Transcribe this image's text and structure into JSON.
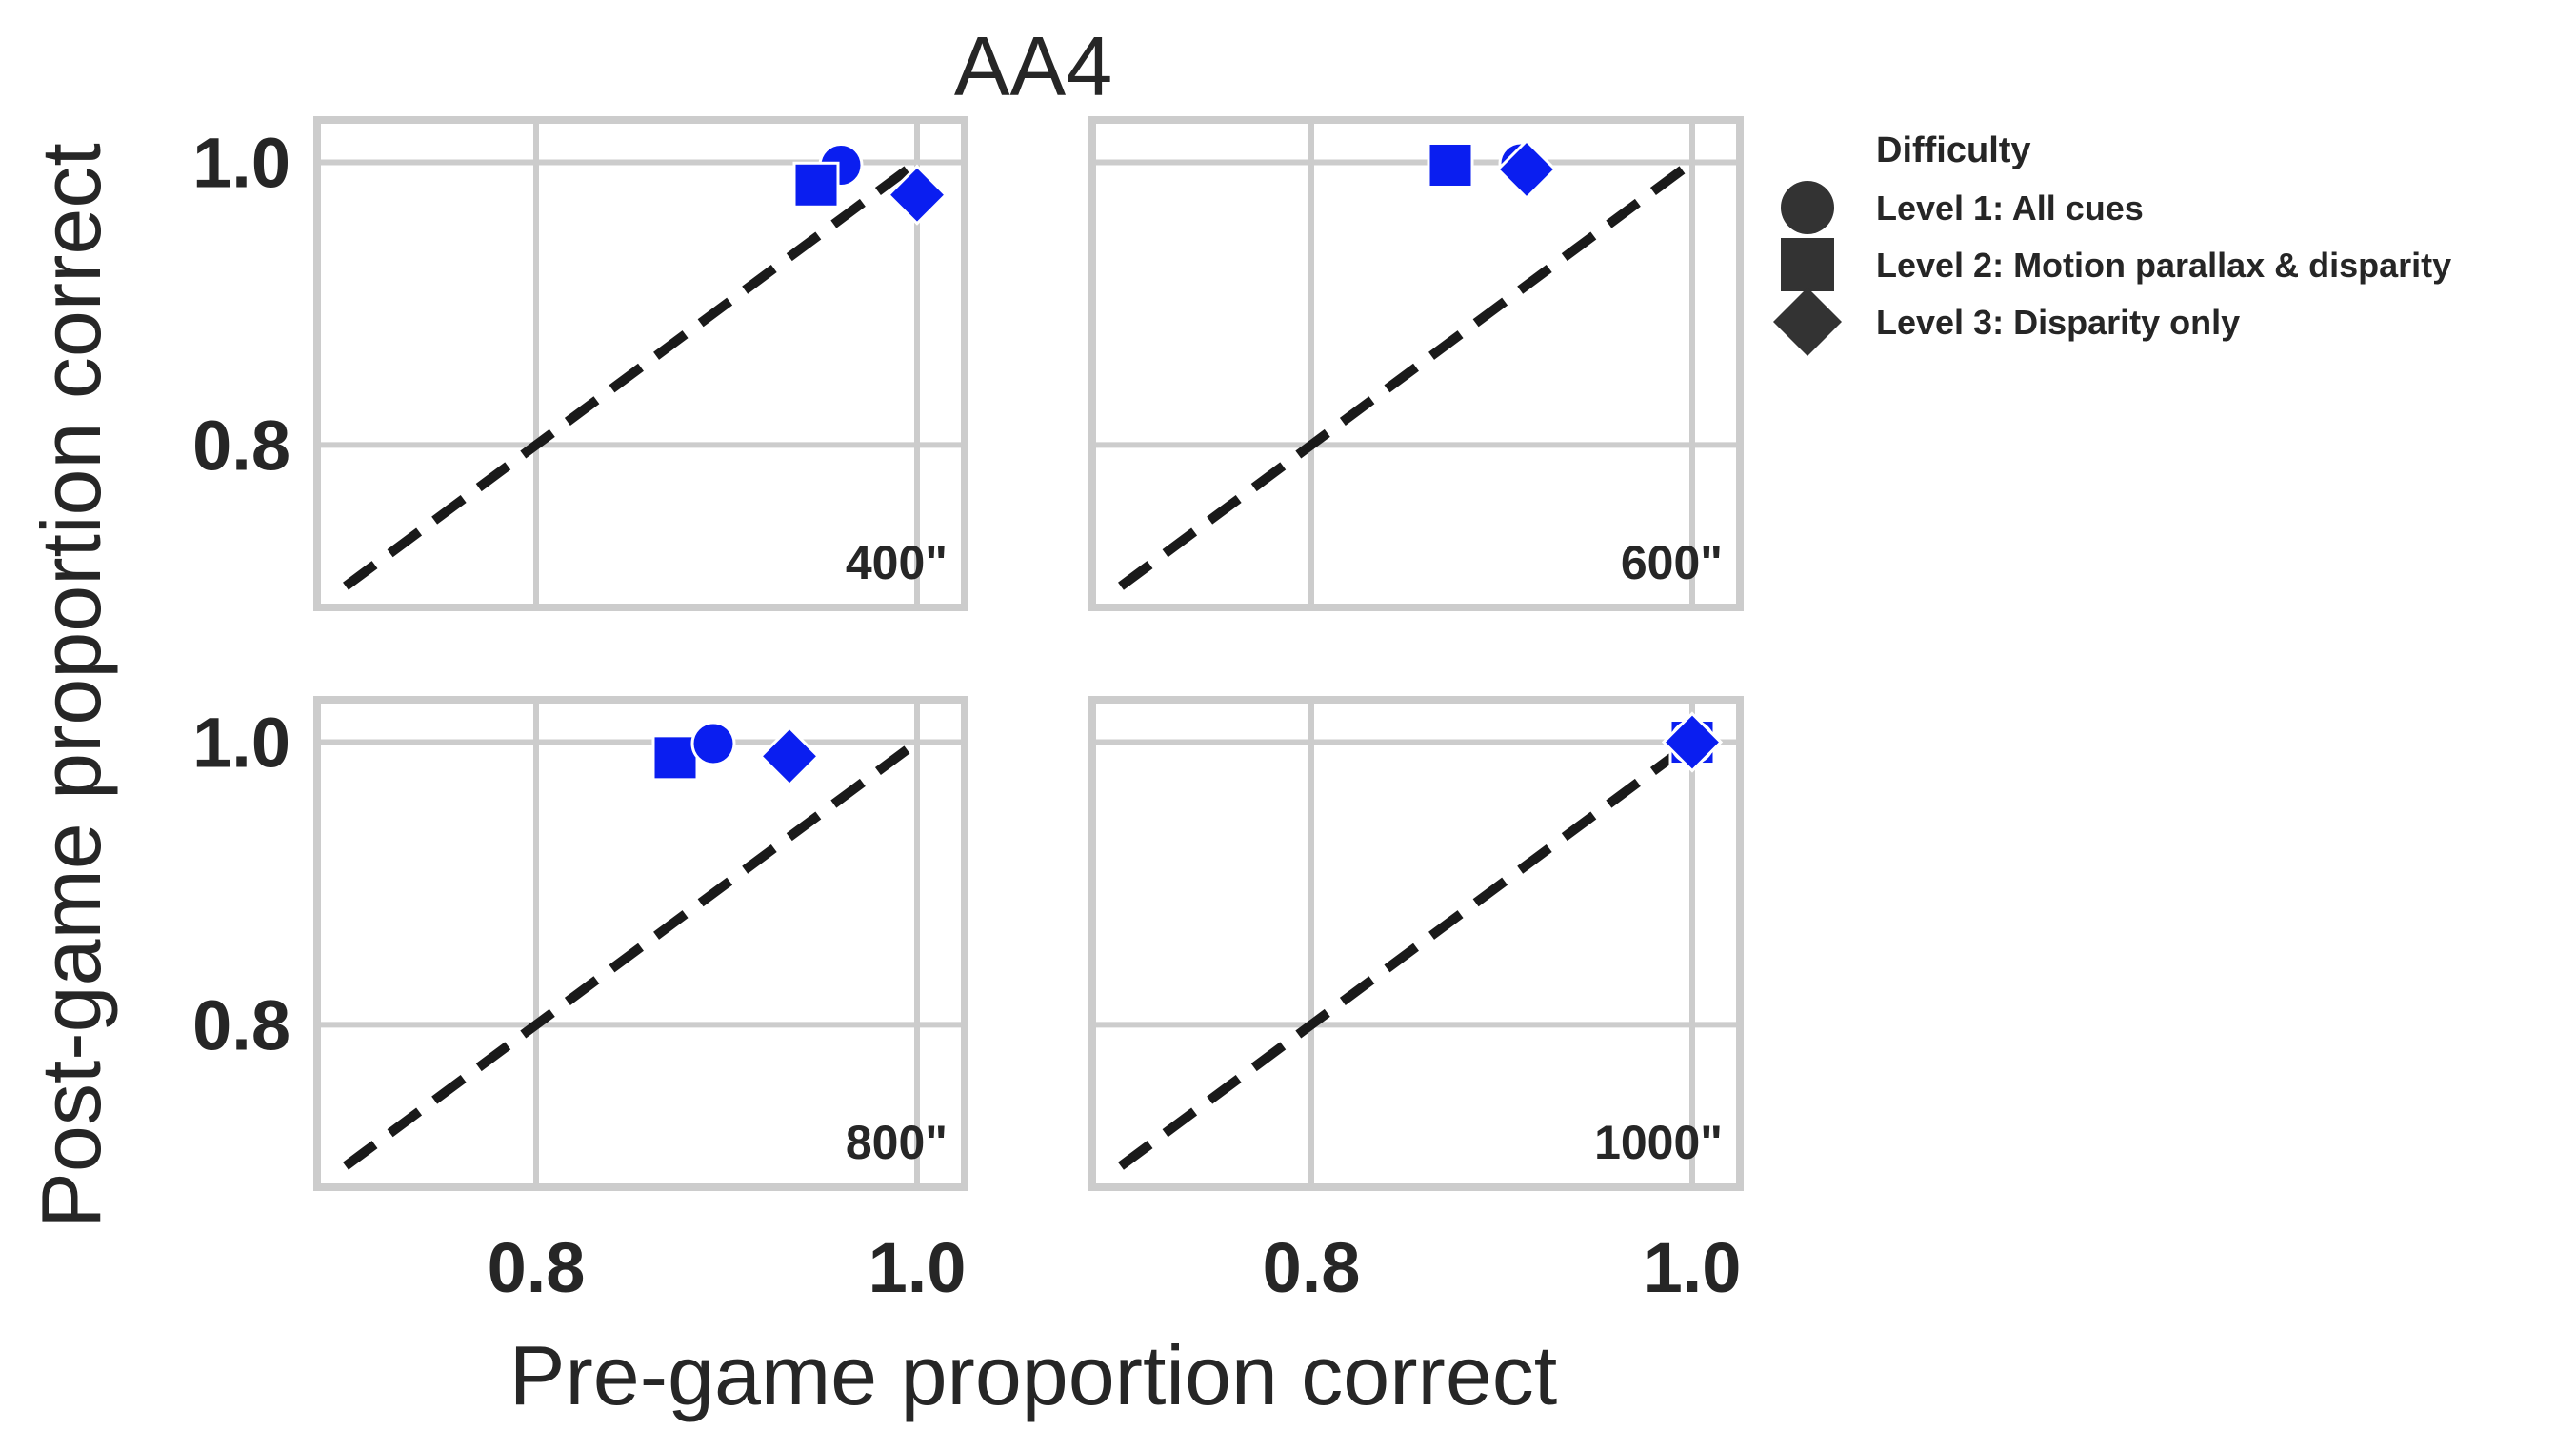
{
  "chart_data": {
    "type": "scatter",
    "title": "AA4",
    "xlabel": "Pre-game proportion correct",
    "ylabel": "Post-game proportion correct",
    "xlim": [
      0.685,
      1.025
    ],
    "ylim": [
      0.685,
      1.03
    ],
    "xticks": [
      0.8,
      1.0
    ],
    "yticks": [
      0.8,
      1.0
    ],
    "xtick_labels": [
      "0.8",
      "1.0"
    ],
    "ytick_labels": [
      "0.8",
      "1.0"
    ],
    "reference_line": {
      "style": "dashed",
      "from": [
        0.7,
        0.7
      ],
      "to": [
        1.0,
        1.0
      ]
    },
    "grid": true,
    "marker_color": "#0a1ef0",
    "legend": {
      "placement": "outside-right",
      "title": "Difficulty",
      "entries": [
        {
          "label": "Level 1: All cues",
          "marker": "circle"
        },
        {
          "label": "Level 2: Motion parallax & disparity",
          "marker": "square"
        },
        {
          "label": "Level 3: Disparity only",
          "marker": "diamond"
        }
      ]
    },
    "panels": [
      {
        "label": "400\"",
        "points": [
          {
            "level": 1,
            "marker": "circle",
            "x": 0.96,
            "y": 0.998
          },
          {
            "level": 2,
            "marker": "square",
            "x": 0.947,
            "y": 0.984
          },
          {
            "level": 3,
            "marker": "diamond",
            "x": 1.0,
            "y": 0.977
          }
        ]
      },
      {
        "label": "600\"",
        "points": [
          {
            "level": 2,
            "marker": "square",
            "x": 0.873,
            "y": 0.998
          },
          {
            "level": 1,
            "marker": "circle",
            "x": 0.91,
            "y": 0.999
          },
          {
            "level": 3,
            "marker": "diamond",
            "x": 0.913,
            "y": 0.995
          }
        ]
      },
      {
        "label": "800\"",
        "points": [
          {
            "level": 2,
            "marker": "square",
            "x": 0.873,
            "y": 0.989
          },
          {
            "level": 1,
            "marker": "circle",
            "x": 0.893,
            "y": 0.999
          },
          {
            "level": 3,
            "marker": "diamond",
            "x": 0.933,
            "y": 0.99
          }
        ]
      },
      {
        "label": "1000\"",
        "points": [
          {
            "level": 2,
            "marker": "square",
            "x": 1.0,
            "y": 1.0
          },
          {
            "level": 1,
            "marker": "circle",
            "x": 1.0,
            "y": 1.0
          },
          {
            "level": 3,
            "marker": "diamond",
            "x": 1.0,
            "y": 1.0
          }
        ]
      }
    ]
  }
}
